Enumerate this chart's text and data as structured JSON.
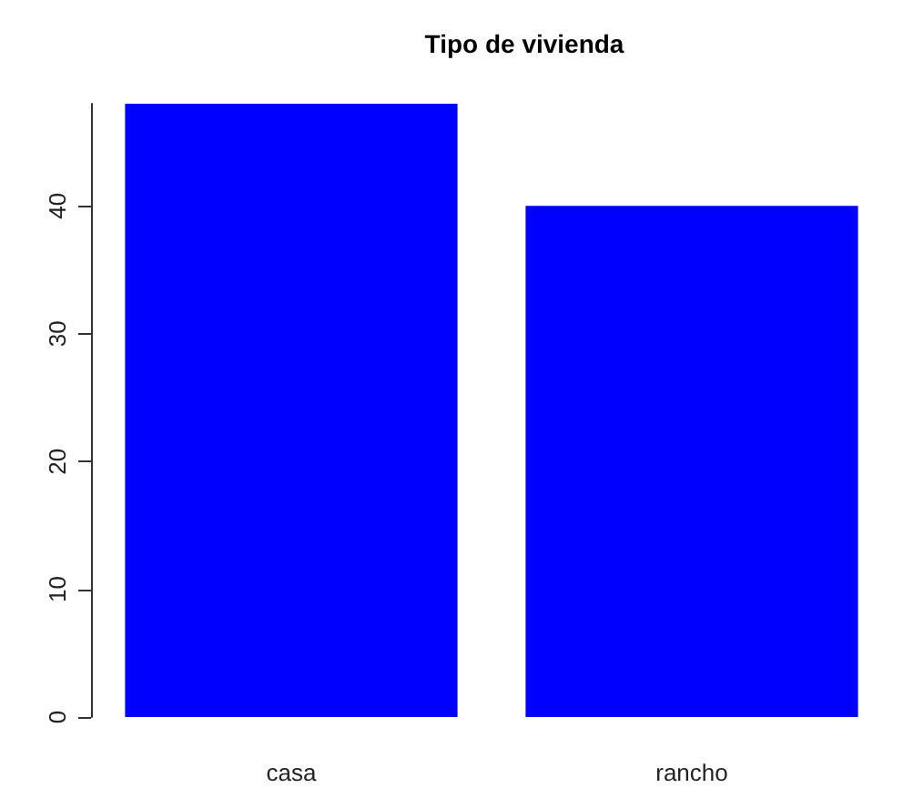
{
  "chart_data": {
    "type": "bar",
    "title": "Tipo de vivienda",
    "categories": [
      "casa",
      "rancho"
    ],
    "values": [
      48,
      40
    ],
    "color": "#0000ff",
    "ylim": [
      0,
      48
    ],
    "yticks": [
      0,
      10,
      20,
      30,
      40
    ],
    "grid": false
  }
}
